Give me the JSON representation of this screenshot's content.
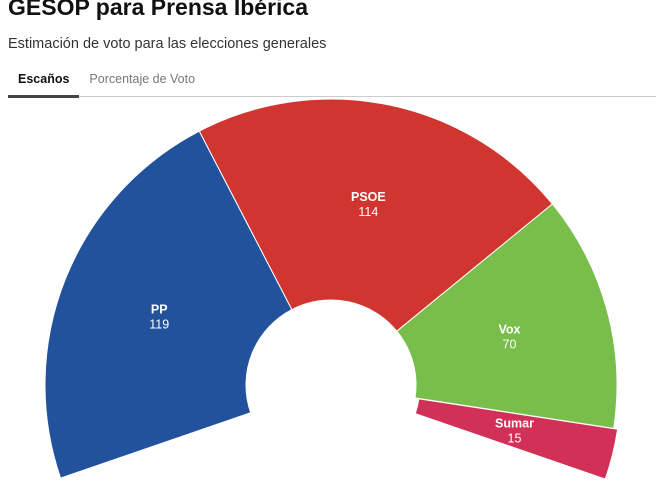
{
  "header": {
    "title": "GESOP para Prensa Ibérica",
    "subtitle": "Estimación de voto para las elecciones generales"
  },
  "tabs": [
    {
      "label": "Escaños",
      "active": true
    },
    {
      "label": "Porcentaje de Voto",
      "active": false
    }
  ],
  "chart_data": {
    "type": "pie",
    "variant": "parliament half-donut",
    "categories": [
      "PP",
      "PSOE",
      "Vox",
      "Sumar"
    ],
    "values": [
      119,
      114,
      70,
      15
    ],
    "colors": [
      "#23529c",
      "#d0362f",
      "#79bd4b",
      "#d13157"
    ]
  }
}
